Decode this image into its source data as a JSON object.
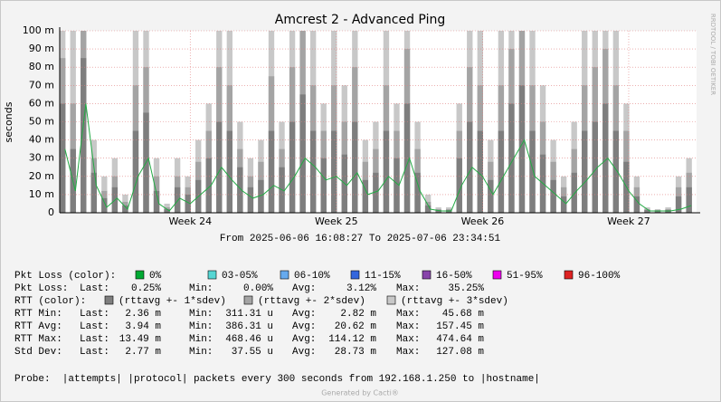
{
  "chart_data": {
    "type": "rrd-ping",
    "title": "Amcrest 2 - Advanced Ping",
    "y_label": "seconds",
    "side_text": "RRDTOOL / TOBI OETIKER",
    "time_range": "From 2025-06-06 16:08:27 To 2025-07-06 23:34:51",
    "footer": "Generated by Cacti®",
    "categories": [
      null,
      null,
      null,
      null,
      null,
      null,
      null,
      null,
      null,
      null,
      null,
      null,
      "Week 24",
      null,
      null,
      null,
      null,
      null,
      null,
      null,
      null,
      null,
      null,
      null,
      null,
      null,
      "Week 25",
      null,
      null,
      null,
      null,
      null,
      null,
      null,
      null,
      null,
      null,
      null,
      null,
      null,
      "Week 26",
      null,
      null,
      null,
      null,
      null,
      null,
      null,
      null,
      null,
      null,
      null,
      null,
      null,
      "Week 27",
      null,
      null,
      null,
      null,
      null,
      null
    ],
    "ylim": [
      0,
      0.1
    ],
    "yticks": [
      0,
      {
        "value": 0.01,
        "label": "10 m"
      },
      {
        "value": 0.02,
        "label": "20 m"
      },
      {
        "value": 0.03,
        "label": "30 m"
      },
      {
        "value": 0.04,
        "label": "40 m"
      },
      {
        "value": 0.05,
        "label": "50 m"
      },
      {
        "value": 0.06,
        "label": "60 m"
      },
      {
        "value": 0.07,
        "label": "70 m"
      },
      {
        "value": 0.08,
        "label": "80 m"
      },
      {
        "value": 0.09,
        "label": "90 m"
      },
      {
        "value": 0.1,
        "label": "100 m"
      }
    ],
    "grid": true,
    "series": [
      {
        "name": "(rttavg +- 3*sdev)",
        "color": "#c8c8c8",
        "kind": "band",
        "values": [
          0.1,
          0.1,
          0.1,
          0.04,
          0.02,
          0.03,
          0.01,
          0.1,
          0.1,
          0.03,
          0.005,
          0.03,
          0.02,
          0.04,
          0.06,
          0.1,
          0.1,
          0.05,
          0.03,
          0.04,
          0.1,
          0.05,
          0.1,
          0.1,
          0.1,
          0.06,
          0.1,
          0.07,
          0.1,
          0.04,
          0.05,
          0.1,
          0.06,
          0.1,
          0.05,
          0.01,
          0.003,
          0.003,
          0.06,
          0.1,
          0.1,
          0.04,
          0.1,
          0.1,
          0.1,
          0.1,
          0.07,
          0.04,
          0.02,
          0.05,
          0.1,
          0.1,
          0.1,
          0.1,
          0.06,
          0.02,
          0.003,
          0.002,
          0.003,
          0.02,
          0.03
        ]
      },
      {
        "name": "(rttavg +- 2*sdev)",
        "color": "#a4a4a4",
        "kind": "band",
        "values": [
          0.085,
          0.06,
          0.1,
          0.03,
          0.012,
          0.02,
          0.006,
          0.07,
          0.08,
          0.02,
          0.003,
          0.02,
          0.014,
          0.028,
          0.045,
          0.08,
          0.07,
          0.035,
          0.02,
          0.028,
          0.075,
          0.035,
          0.08,
          0.1,
          0.07,
          0.045,
          0.07,
          0.05,
          0.08,
          0.028,
          0.035,
          0.07,
          0.045,
          0.09,
          0.035,
          0.006,
          0.002,
          0.002,
          0.045,
          0.08,
          0.07,
          0.028,
          0.07,
          0.09,
          0.1,
          0.07,
          0.05,
          0.028,
          0.014,
          0.035,
          0.07,
          0.08,
          0.09,
          0.07,
          0.045,
          0.014,
          0.002,
          0.0015,
          0.002,
          0.014,
          0.022
        ]
      },
      {
        "name": "(rttavg +- 1*sdev)",
        "color": "#7e7e7e",
        "kind": "band",
        "values": [
          0.06,
          0.035,
          0.085,
          0.022,
          0.008,
          0.014,
          0.004,
          0.045,
          0.055,
          0.012,
          0.002,
          0.014,
          0.01,
          0.018,
          0.03,
          0.05,
          0.045,
          0.025,
          0.014,
          0.018,
          0.045,
          0.025,
          0.05,
          0.065,
          0.045,
          0.03,
          0.045,
          0.032,
          0.05,
          0.018,
          0.022,
          0.045,
          0.03,
          0.06,
          0.022,
          0.004,
          0.0015,
          0.0015,
          0.03,
          0.05,
          0.045,
          0.018,
          0.045,
          0.06,
          0.07,
          0.045,
          0.032,
          0.018,
          0.009,
          0.022,
          0.045,
          0.05,
          0.06,
          0.045,
          0.028,
          0.009,
          0.0015,
          0.0012,
          0.0015,
          0.009,
          0.014
        ]
      },
      {
        "color": "#22aa44",
        "kind": "line",
        "values": [
          0.035,
          0.012,
          0.06,
          0.015,
          0.003,
          0.008,
          0.002,
          0.02,
          0.03,
          0.005,
          0.001,
          0.008,
          0.005,
          0.01,
          0.015,
          0.025,
          0.018,
          0.012,
          0.008,
          0.01,
          0.015,
          0.012,
          0.02,
          0.03,
          0.025,
          0.018,
          0.02,
          0.015,
          0.022,
          0.01,
          0.012,
          0.02,
          0.015,
          0.03,
          0.012,
          0.002,
          0.001,
          0.001,
          0.015,
          0.025,
          0.02,
          0.01,
          0.02,
          0.03,
          0.04,
          0.02,
          0.015,
          0.01,
          0.005,
          0.012,
          0.018,
          0.025,
          0.03,
          0.022,
          0.012,
          0.005,
          0.001,
          0.001,
          0.001,
          0.002,
          0.004
        ]
      }
    ],
    "loss_legend": {
      "label": "Pkt Loss (color):",
      "items": [
        {
          "label": "0%",
          "color": "#00aa33"
        },
        {
          "label": "03-05%",
          "color": "#55d6d3"
        },
        {
          "label": "06-10%",
          "color": "#66aaee"
        },
        {
          "label": "11-15%",
          "color": "#3366dd"
        },
        {
          "label": "16-50%",
          "color": "#8844aa"
        },
        {
          "label": "51-95%",
          "color": "#ee00ee"
        },
        {
          "label": "96-100%",
          "color": "#dd2222"
        }
      ]
    },
    "rtt_legend_label": "RTT (color):",
    "stats": [
      {
        "label": "Pkt Loss:",
        "cells": [
          [
            "Last:",
            "0.25%"
          ],
          [
            "Min:",
            "0.00%"
          ],
          [
            "Avg:",
            "3.12%"
          ],
          [
            "Max:",
            "35.25%"
          ]
        ]
      },
      {
        "label": "RTT Min:",
        "cells": [
          [
            "Last:",
            "2.36 m"
          ],
          [
            "Min:",
            "311.31 u"
          ],
          [
            "Avg:",
            "2.82 m"
          ],
          [
            "Max:",
            "45.68 m"
          ]
        ]
      },
      {
        "label": "RTT Avg:",
        "cells": [
          [
            "Last:",
            "3.94 m"
          ],
          [
            "Min:",
            "386.31 u"
          ],
          [
            "Avg:",
            "20.62 m"
          ],
          [
            "Max:",
            "157.45 m"
          ]
        ]
      },
      {
        "label": "RTT Max:",
        "cells": [
          [
            "Last:",
            "13.49 m"
          ],
          [
            "Min:",
            "468.46 u"
          ],
          [
            "Avg:",
            "114.12 m"
          ],
          [
            "Max:",
            "474.64 m"
          ]
        ]
      },
      {
        "label": "Std Dev:",
        "cells": [
          [
            "Last:",
            "2.77 m"
          ],
          [
            "Min:",
            "37.55 u"
          ],
          [
            "Avg:",
            "28.73 m"
          ],
          [
            "Max:",
            "127.08 m"
          ]
        ]
      }
    ],
    "probe": "Probe:  |attempts| |protocol| packets every 300 seconds from 192.168.1.250 to |hostname|"
  }
}
